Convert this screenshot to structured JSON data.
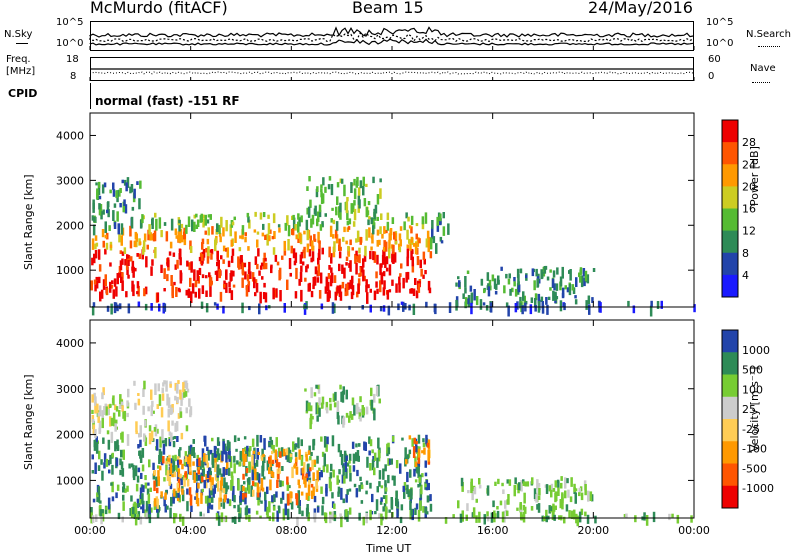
{
  "header": {
    "station": "McMurdo (fitACF)",
    "beam": "Beam 15",
    "date": "24/May/2016"
  },
  "noise_panel": {
    "left_label": "N.Sky",
    "left_ticks": [
      "10^5",
      "10^0"
    ],
    "right_ticks": [
      "10^5",
      "10^0"
    ],
    "right_label": "N.Search"
  },
  "freq_panel": {
    "left_label_1": "Freq.",
    "left_label_2": "[MHz]",
    "left_ticks": [
      "18",
      "8"
    ],
    "right_ticks": [
      "60",
      "0"
    ],
    "right_label": "Nave"
  },
  "cpid_panel": {
    "label": "CPID",
    "text": "normal (fast) -151 RF"
  },
  "colors": {
    "power": [
      "#1a1aff",
      "#2244aa",
      "#2e8b57",
      "#55bb33",
      "#cccc22",
      "#ff9900",
      "#ff5500",
      "#ee0000"
    ],
    "velocity": [
      "#ee0000",
      "#ff5500",
      "#ff9900",
      "#ffcc55",
      "#cccccc",
      "#77cc33",
      "#2e8b57",
      "#2244aa"
    ]
  },
  "chart_data": [
    {
      "type": "heatmap",
      "name": "power",
      "ylabel": "Slant Range [km]",
      "xlabel": "",
      "xticks": [
        "00:00",
        "04:00",
        "08:00",
        "12:00",
        "16:00",
        "20:00",
        "00:00"
      ],
      "yticks": [
        "1000",
        "2000",
        "3000",
        "4000"
      ],
      "ylim": [
        180,
        4500
      ],
      "xlim_hours": [
        0,
        24
      ],
      "colorbar": {
        "label": "Power [dB]",
        "ticks": [
          "28",
          "24",
          "20",
          "16",
          "12",
          "8",
          "4"
        ],
        "range": [
          0,
          32
        ]
      },
      "regions": [
        {
          "t0": 0.0,
          "t1": 13.5,
          "r0": 500,
          "r1": 1500,
          "level": 7
        },
        {
          "t0": 0.0,
          "t1": 13.5,
          "r0": 1500,
          "r1": 2000,
          "level": 5
        },
        {
          "t0": 0.0,
          "t1": 2.0,
          "r0": 2000,
          "r1": 3100,
          "level": 2
        },
        {
          "t0": 2.0,
          "t1": 13.5,
          "r0": 2000,
          "r1": 2300,
          "level": 3
        },
        {
          "t0": 8.5,
          "t1": 11.5,
          "r0": 2300,
          "r1": 3100,
          "level": 3
        },
        {
          "t0": 13.5,
          "t1": 14.2,
          "r0": 1500,
          "r1": 2300,
          "level": 2
        },
        {
          "t0": 14.5,
          "t1": 20.0,
          "r0": 300,
          "r1": 1100,
          "level": 2
        },
        {
          "t0": 0.0,
          "t1": 24.0,
          "r0": 200,
          "r1": 320,
          "level": 1
        }
      ]
    },
    {
      "type": "heatmap",
      "name": "velocity",
      "ylabel": "Slant Range [km]",
      "xlabel": "Time UT",
      "xticks": [
        "00:00",
        "04:00",
        "08:00",
        "12:00",
        "16:00",
        "20:00",
        "00:00"
      ],
      "yticks": [
        "1000",
        "2000",
        "3000",
        "4000"
      ],
      "ylim": [
        180,
        4500
      ],
      "xlim_hours": [
        0,
        24
      ],
      "colorbar": {
        "label": "Velocity [m s⁻¹]",
        "ticks": [
          "1000",
          "500",
          "100",
          "25",
          "-25",
          "-100",
          "-500",
          "-1000"
        ],
        "range": [
          -1200,
          1200
        ]
      },
      "regions": [
        {
          "t0": 0.0,
          "t1": 13.5,
          "r0": 300,
          "r1": 2000,
          "level": 6
        },
        {
          "t0": 2.5,
          "t1": 5.5,
          "r0": 600,
          "r1": 1600,
          "level": 2
        },
        {
          "t0": 4.5,
          "t1": 5.5,
          "r0": 900,
          "r1": 2000,
          "level": 7
        },
        {
          "t0": 6.0,
          "t1": 9.0,
          "r0": 700,
          "r1": 1700,
          "level": 2
        },
        {
          "t0": 0.0,
          "t1": 4.0,
          "r0": 2000,
          "r1": 3200,
          "level": 4
        },
        {
          "t0": 8.5,
          "t1": 11.5,
          "r0": 2300,
          "r1": 3100,
          "level": 5
        },
        {
          "t0": 12.5,
          "t1": 13.5,
          "r0": 1400,
          "r1": 2000,
          "level": 2
        },
        {
          "t0": 14.5,
          "t1": 20.0,
          "r0": 300,
          "r1": 1100,
          "level": 5
        },
        {
          "t0": 0.0,
          "t1": 24.0,
          "r0": 200,
          "r1": 320,
          "level": 5
        }
      ]
    }
  ]
}
